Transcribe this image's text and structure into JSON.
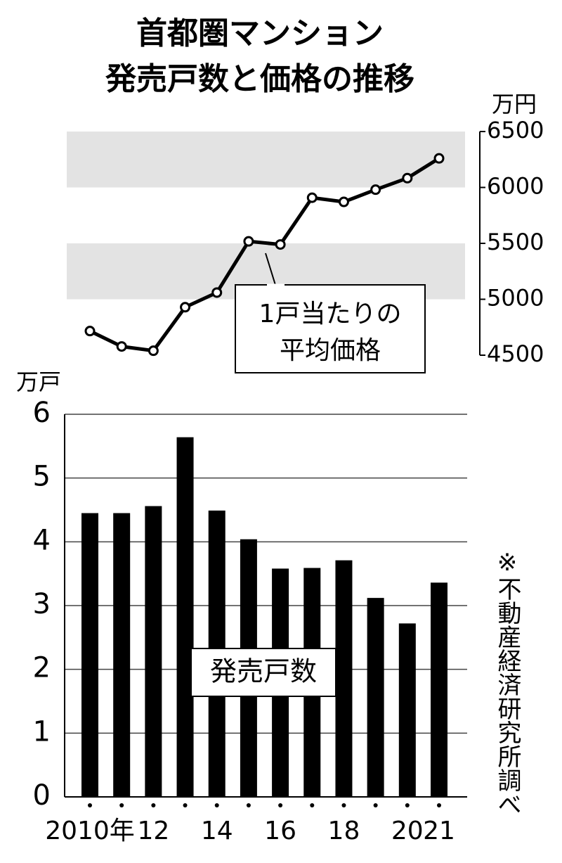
{
  "title": [
    "首都圏マンション",
    "発売戸数と価格の推移"
  ],
  "chart_data": [
    {
      "type": "line",
      "unit": "万円",
      "values": [
        4716,
        4578,
        4540,
        4929,
        5060,
        5518,
        5490,
        5908,
        5871,
        5980,
        6083,
        6260
      ],
      "color": "#000000",
      "ylim": [
        4500,
        6500
      ],
      "yticks": [
        4500,
        5000,
        5500,
        6000,
        6500
      ],
      "shading": true,
      "annotation": [
        "1戸当たりの",
        "平均価格"
      ]
    },
    {
      "type": "bar",
      "unit": "万戸",
      "label": "発売戸数",
      "categories": [
        "2010年",
        null,
        "12",
        null,
        "14",
        null,
        "16",
        null,
        "18",
        null,
        "20",
        "21"
      ],
      "values": [
        4.45,
        4.45,
        4.56,
        5.64,
        4.49,
        4.04,
        3.58,
        3.59,
        3.71,
        3.12,
        2.72,
        3.36
      ],
      "color": "#000000",
      "ylim": [
        0,
        6
      ],
      "yticks": [
        0,
        1,
        2,
        3,
        4,
        5,
        6
      ],
      "grid": true,
      "source": "※不動産経済研究所調べ"
    }
  ]
}
